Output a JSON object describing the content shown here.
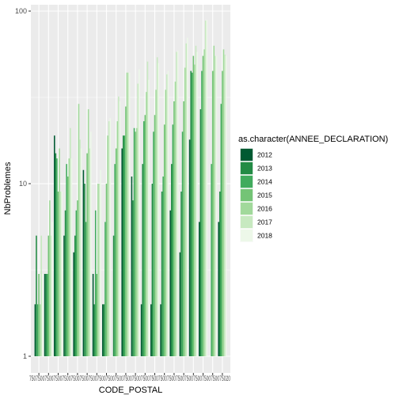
{
  "chart_data": {
    "type": "bar",
    "xlabel": "CODE_POSTAL",
    "ylabel": "NbProblemes",
    "y_scale": "log10",
    "ylim": [
      1,
      100
    ],
    "y_ticks": [
      {
        "value": 1,
        "label": "1"
      },
      {
        "value": 10,
        "label": "10"
      },
      {
        "value": 100,
        "label": "100"
      }
    ],
    "grid": true,
    "legend_position": "right",
    "legend_title": "as.character(ANNEE_DECLARATION)",
    "categories": [
      "75001",
      "75002",
      "75003",
      "75004",
      "75005",
      "75006",
      "75007",
      "75008",
      "75009",
      "75010",
      "75011",
      "75012",
      "75013",
      "75014",
      "75015",
      "75016",
      "75017",
      "75018",
      "75019",
      "75020"
    ],
    "x_tick_labels_visible": "75075007500750075007500750075007500750075007500750075007500750075007500750075007500750075020",
    "series": [
      {
        "name": "2012",
        "color": "#005A32",
        "values": [
          2,
          3,
          19,
          5,
          4,
          12,
          3,
          2,
          null,
          16,
          11,
          2,
          2,
          2,
          7,
          4,
          18,
          6,
          null,
          6
        ]
      },
      {
        "name": "2013",
        "color": "#238B45",
        "values": [
          5,
          3,
          15,
          7,
          5,
          10,
          2,
          2,
          5,
          19,
          8,
          13,
          10,
          9,
          13,
          9,
          45,
          27,
          null,
          9
        ]
      },
      {
        "name": "2014",
        "color": "#41AB5D",
        "values": [
          2,
          3,
          14,
          13,
          7,
          6,
          7,
          6,
          13,
          19,
          21,
          23,
          20,
          11,
          22,
          20,
          44,
          45,
          13,
          29
        ]
      },
      {
        "name": "2015",
        "color": "#74C476",
        "values": [
          3,
          5,
          9,
          11,
          8,
          15,
          3,
          10,
          16,
          28,
          20,
          25,
          25,
          22,
          30,
          30,
          55,
          55,
          45,
          45
        ]
      },
      {
        "name": "2016",
        "color": "#A1D99B",
        "values": [
          2,
          8,
          16,
          14,
          29,
          27,
          10,
          19,
          23,
          44,
          21,
          34,
          35,
          35,
          39,
          47,
          49,
          60,
          63,
          60
        ]
      },
      {
        "name": "2017",
        "color": "#C7E9C0",
        "values": [
          5,
          5,
          9,
          21,
          18,
          16,
          10,
          23,
          32,
          44,
          38,
          51,
          54,
          43,
          58,
          65,
          63,
          88,
          55,
          56
        ]
      },
      {
        "name": "2018",
        "color": "#EDF8E9",
        "values": [
          3,
          6,
          9,
          14,
          16,
          20,
          12,
          24,
          30,
          44,
          46,
          40,
          50,
          45,
          59,
          70,
          58,
          89,
          55,
          55
        ]
      }
    ]
  }
}
